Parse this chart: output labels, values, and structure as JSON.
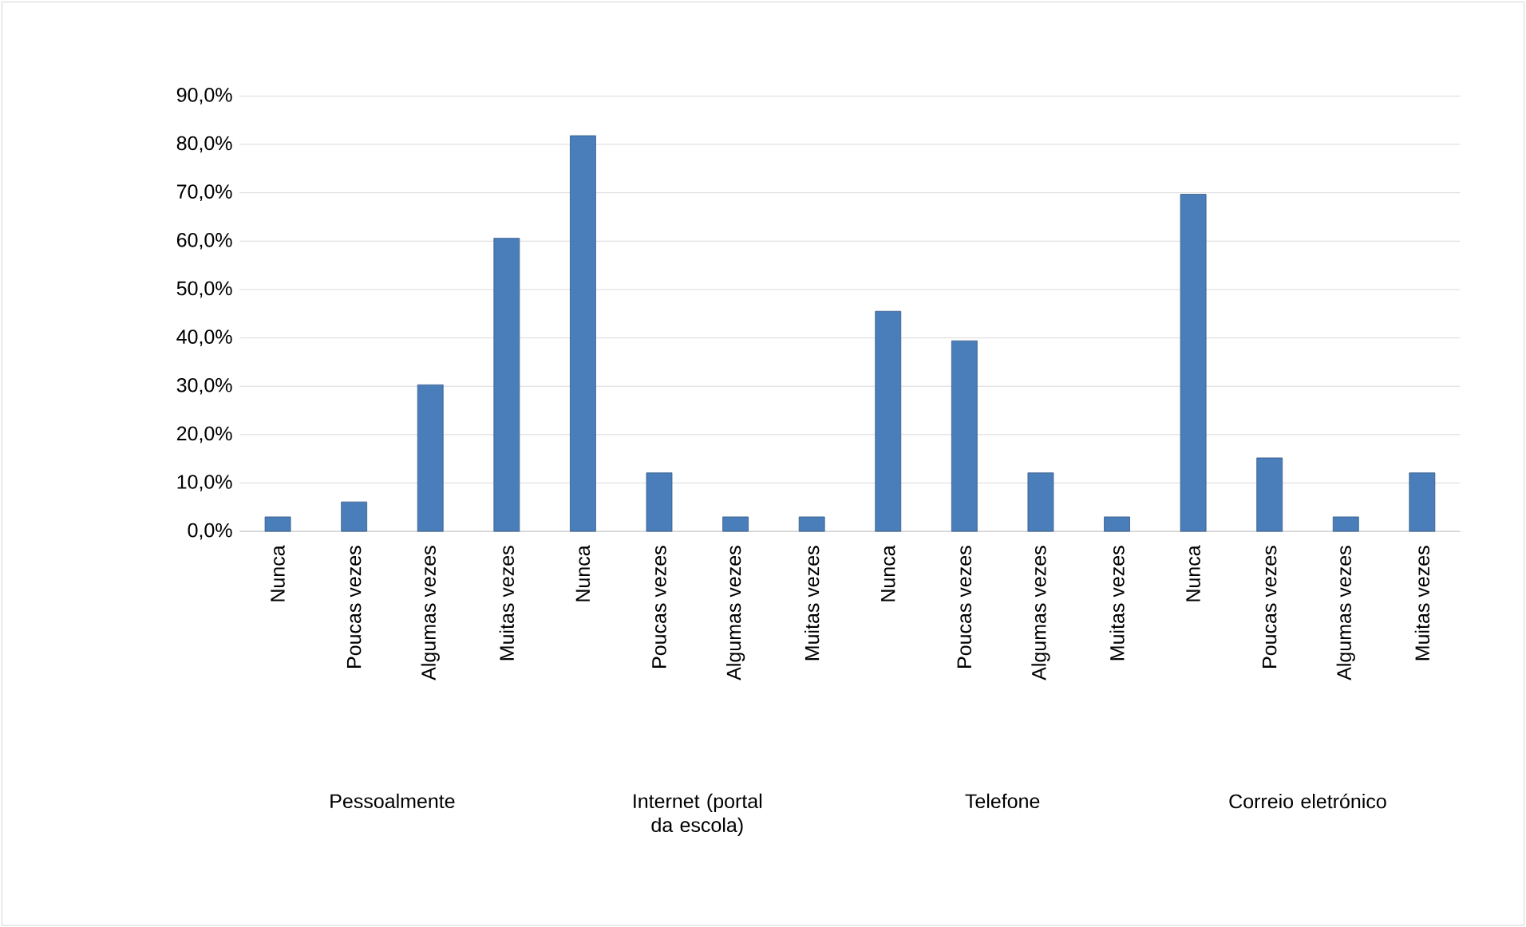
{
  "chart_data": {
    "type": "bar",
    "categories": [
      "Nunca",
      "Poucas vezes",
      "Algumas vezes",
      "Muitas vezes",
      "Nunca",
      "Poucas vezes",
      "Algumas vezes",
      "Muitas vezes",
      "Nunca",
      "Poucas vezes",
      "Algumas vezes",
      "Muitas vezes",
      "Nunca",
      "Poucas vezes",
      "Algumas vezes",
      "Muitas vezes"
    ],
    "values": [
      3.0,
      6.1,
      30.3,
      60.6,
      81.8,
      12.1,
      3.0,
      3.0,
      45.5,
      39.4,
      12.1,
      3.0,
      69.7,
      15.2,
      3.0,
      12.1
    ],
    "color": "#4a7ebb",
    "ylim": [
      0,
      90
    ],
    "yticks": [
      {
        "value": 0,
        "label": "0,0%"
      },
      {
        "value": 10,
        "label": "10,0%"
      },
      {
        "value": 20,
        "label": "20,0%"
      },
      {
        "value": 30,
        "label": "30,0%"
      },
      {
        "value": 40,
        "label": "40,0%"
      },
      {
        "value": 50,
        "label": "50,0%"
      },
      {
        "value": 60,
        "label": "60,0%"
      },
      {
        "value": 70,
        "label": "70,0%"
      },
      {
        "value": 80,
        "label": "80,0%"
      },
      {
        "value": 90,
        "label": "90,0%"
      }
    ],
    "grid": "y",
    "annotations": [
      "Pessoalmente",
      "Internet (portal da escola)",
      "Telefone",
      "Correio eletrónico"
    ]
  }
}
